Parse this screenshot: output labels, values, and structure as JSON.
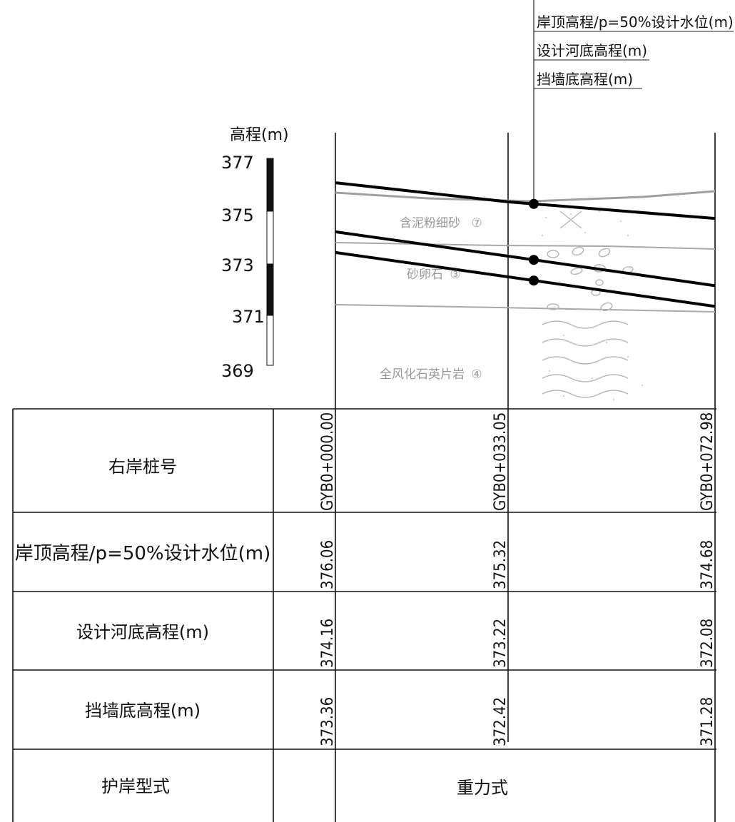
{
  "legend": [
    "岸顶高程/p=50%设计水位(m)",
    "设计河底高程(m)",
    "挡墙底高程(m)"
  ],
  "elevation_axis": {
    "title": "高程(m)",
    "ticks": [
      "377",
      "375",
      "373",
      "371",
      "369"
    ]
  },
  "soil_layers": [
    {
      "name": "含泥粉细砂",
      "num": "⑦"
    },
    {
      "name": "砂卵石",
      "num": "③"
    },
    {
      "name": "全风化石英片岩",
      "num": "④"
    }
  ],
  "table": {
    "row_labels": [
      "右岸桩号",
      "岸顶高程/p=50%设计水位(m)",
      "设计河底高程(m)",
      "挡墙底高程(m)",
      "护岸型式"
    ],
    "stations": [
      "GYB0+000.00",
      "GYB0+033.05",
      "GYB0+072.98"
    ],
    "bank_top": [
      "376.06",
      "375.32",
      "374.68"
    ],
    "river_bottom": [
      "374.16",
      "373.22",
      "372.08"
    ],
    "wall_bottom": [
      "373.36",
      "372.42",
      "371.28"
    ],
    "revetment_type": "重力式"
  },
  "profile_data": {
    "bank_top_elevation": [
      376.06,
      375.32,
      374.68
    ],
    "design_river_bottom_elevation": [
      374.16,
      373.22,
      372.08
    ],
    "retaining_wall_bottom_elevation": [
      373.36,
      372.42,
      371.28
    ]
  }
}
